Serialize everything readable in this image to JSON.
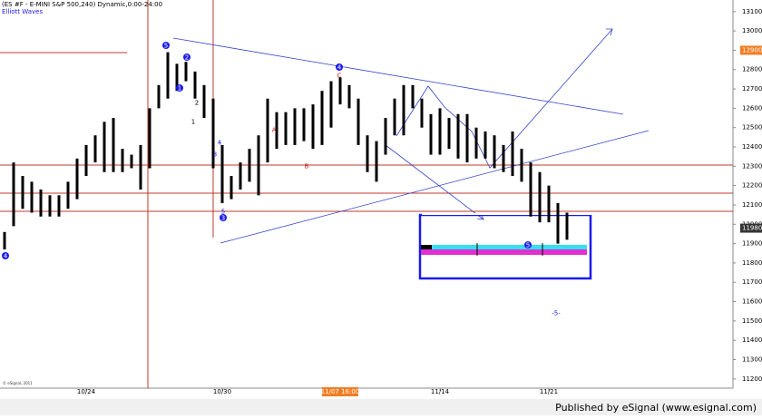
{
  "chart_data": {
    "type": "range-bar",
    "title": "(ES #F - E-MINI S&P 500,240) Dynamic,0:00-24:00",
    "subtitle": "Elliott Waves",
    "copyright": "© eSignal, 2011",
    "footer": "Published by eSignal (www.esignal.com)",
    "color": "#000000",
    "categories": [
      null,
      null,
      null,
      null,
      null,
      null,
      null,
      null,
      null,
      "10/24",
      null,
      null,
      null,
      null,
      null,
      null,
      null,
      null,
      null,
      null,
      null,
      null,
      null,
      null,
      "10/30",
      null,
      null,
      null,
      null,
      null,
      null,
      null,
      null,
      null,
      null,
      null,
      null,
      "11/07 16:00",
      null,
      null,
      null,
      null,
      null,
      null,
      null,
      null,
      null,
      null,
      "11/14",
      null,
      null,
      null,
      null,
      null,
      null,
      null,
      null,
      null,
      null,
      null,
      "11/21",
      null,
      null
    ],
    "high": [
      11960,
      12320,
      12250,
      12220,
      12180,
      12150,
      12150,
      12220,
      12340,
      12410,
      12460,
      12530,
      12550,
      12390,
      12360,
      12410,
      12600,
      12720,
      12890,
      12830,
      12840,
      12790,
      12720,
      12650,
      12410,
      12250,
      12320,
      12390,
      12460,
      12650,
      12580,
      12580,
      12600,
      12600,
      12620,
      12690,
      12740,
      12760,
      12720,
      12650,
      12460,
      12430,
      12550,
      12650,
      12720,
      12720,
      12650,
      12570,
      12600,
      12550,
      12570,
      12570,
      12500,
      12480,
      12460,
      12410,
      12480,
      12390,
      12320,
      12270,
      12200,
      12110,
      12060
    ],
    "low": [
      11870,
      11990,
      12080,
      12060,
      12040,
      12040,
      12040,
      12080,
      12130,
      12250,
      12320,
      12270,
      12270,
      12270,
      12290,
      12180,
      12290,
      12600,
      12650,
      12690,
      12740,
      12650,
      12550,
      12290,
      12110,
      12130,
      12180,
      12220,
      12150,
      12320,
      12390,
      12410,
      12410,
      12430,
      12390,
      12410,
      12500,
      12620,
      12600,
      12410,
      12270,
      12220,
      12360,
      12460,
      12460,
      12600,
      12500,
      12360,
      12360,
      12390,
      12340,
      12320,
      12340,
      12340,
      12290,
      12270,
      12250,
      12220,
      12040,
      12010,
      12010,
      11900,
      11920
    ],
    "ylim": [
      11150,
      13160
    ],
    "yticks": [
      11200,
      11300,
      11400,
      11500,
      11600,
      11700,
      11800,
      11900,
      12000,
      12100,
      12200,
      12300,
      12400,
      12500,
      12600,
      12700,
      12800,
      12900,
      13000,
      13100
    ],
    "marked_levels": [
      {
        "value": 12900,
        "color": "#f47c20"
      },
      {
        "value": 11980,
        "color": "#333333"
      }
    ],
    "wave_labels": [
      "5",
      "2",
      "1",
      "4",
      "3",
      "4",
      "5",
      "A",
      "B",
      "C",
      "4",
      "3",
      "2",
      "1",
      "5",
      "-5-"
    ]
  }
}
